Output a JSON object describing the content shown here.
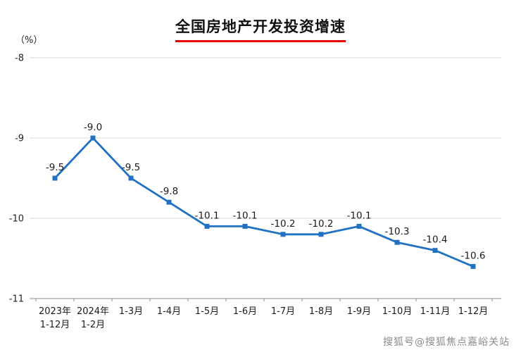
{
  "page": {
    "title": "全国房地产开发投资增速",
    "unit_label": "（%）",
    "watermark": "搜狐号@搜狐焦点嘉峪关站"
  },
  "colors": {
    "line": "#2272C3",
    "title_underline": "#E60000",
    "grid": "#D9D9D9",
    "axis": "#8C8C8C",
    "text": "#222222"
  },
  "chart_data": {
    "type": "line",
    "title": "全国房地产开发投资增速",
    "ylabel": "（%）",
    "categories": [
      "2023年1-12月",
      "2024年1-2月",
      "1-3月",
      "1-4月",
      "1-5月",
      "1-6月",
      "1-7月",
      "1-8月",
      "1-9月",
      "1-10月",
      "1-11月",
      "1-12月"
    ],
    "categories_display": [
      [
        "2023年",
        "1-12月"
      ],
      [
        "2024年",
        "1-2月"
      ],
      [
        "1-3月"
      ],
      [
        "1-4月"
      ],
      [
        "1-5月"
      ],
      [
        "1-6月"
      ],
      [
        "1-7月"
      ],
      [
        "1-8月"
      ],
      [
        "1-9月"
      ],
      [
        "1-10月"
      ],
      [
        "1-11月"
      ],
      [
        "1-12月"
      ]
    ],
    "values": [
      -9.5,
      -9.0,
      -9.5,
      -9.8,
      -10.1,
      -10.1,
      -10.2,
      -10.2,
      -10.1,
      -10.3,
      -10.4,
      -10.6
    ],
    "data_labels": [
      "-9.5",
      "-9.0",
      "-9.5",
      "-9.8",
      "-10.1",
      "-10.1",
      "-10.2",
      "-10.2",
      "-10.1",
      "-10.3",
      "-10.4",
      "-10.6"
    ],
    "ylim": [
      -11,
      -8
    ],
    "yticks": [
      -8,
      -9,
      -10,
      -11
    ],
    "grid": true,
    "legend": "none",
    "marker": "square"
  }
}
